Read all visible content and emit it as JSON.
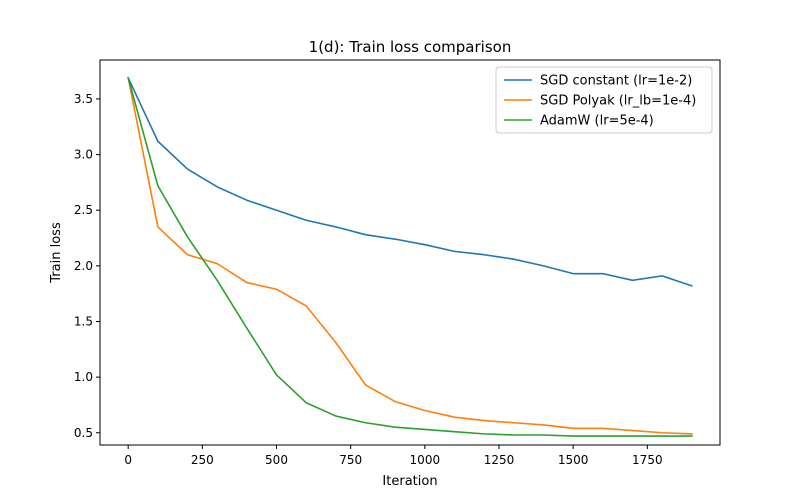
{
  "chart_data": {
    "type": "line",
    "title": "1(d): Train loss comparison",
    "xlabel": "Iteration",
    "ylabel": "Train loss",
    "xlim": [
      -95,
      1995
    ],
    "ylim": [
      0.39,
      3.85
    ],
    "xticks": [
      0,
      250,
      500,
      750,
      1000,
      1250,
      1500,
      1750
    ],
    "yticks": [
      0.5,
      1.0,
      1.5,
      2.0,
      2.5,
      3.0,
      3.5
    ],
    "grid": false,
    "legend_position": "top-right",
    "x": [
      0,
      100,
      200,
      300,
      400,
      500,
      600,
      700,
      800,
      900,
      1000,
      1100,
      1200,
      1300,
      1400,
      1500,
      1600,
      1700,
      1800,
      1900
    ],
    "series": [
      {
        "name": "SGD constant (lr=1e-2)",
        "color": "#1f77b4",
        "values": [
          3.69,
          3.12,
          2.87,
          2.71,
          2.59,
          2.5,
          2.41,
          2.35,
          2.28,
          2.24,
          2.19,
          2.13,
          2.1,
          2.06,
          2.0,
          1.93,
          1.93,
          1.87,
          1.91,
          1.82
        ]
      },
      {
        "name": "SGD Polyak (lr_lb=1e-4)",
        "color": "#ff7f0e",
        "values": [
          3.69,
          2.35,
          2.1,
          2.02,
          1.85,
          1.79,
          1.64,
          1.31,
          0.93,
          0.78,
          0.7,
          0.64,
          0.61,
          0.59,
          0.57,
          0.54,
          0.54,
          0.52,
          0.5,
          0.49
        ]
      },
      {
        "name": "AdamW (lr=5e-4)",
        "color": "#2ca02c",
        "values": [
          3.69,
          2.72,
          2.26,
          1.87,
          1.44,
          1.02,
          0.77,
          0.65,
          0.59,
          0.55,
          0.53,
          0.51,
          0.49,
          0.48,
          0.48,
          0.47,
          0.47,
          0.47,
          0.47,
          0.47
        ]
      }
    ]
  }
}
